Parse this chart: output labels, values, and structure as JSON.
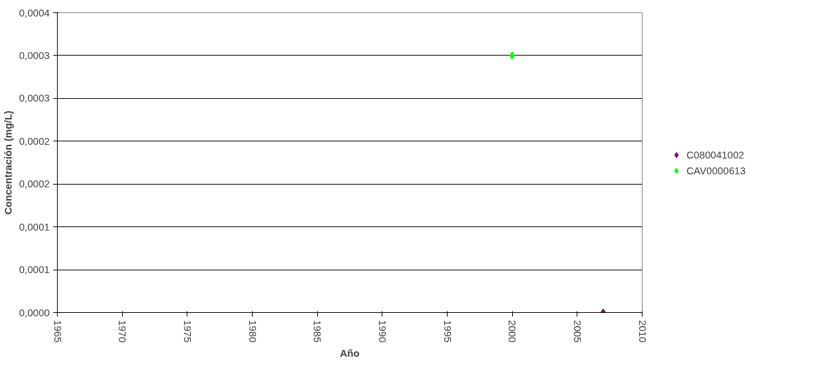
{
  "chart_data": {
    "type": "scatter",
    "xlabel": "Año",
    "ylabel": "Concentración (mg/L)",
    "marker": "diamond",
    "grid": "y",
    "legend": "right",
    "xlim": [
      1965,
      2010
    ],
    "xticks": [
      1965,
      1970,
      1975,
      1980,
      1985,
      1990,
      1995,
      2000,
      2005,
      2010
    ],
    "ylim": [
      0,
      0.00035
    ],
    "yticks": [
      {
        "value": 0,
        "label": "0,0000"
      },
      {
        "value": 5e-05,
        "label": "0,0001"
      },
      {
        "value": 0.0001,
        "label": "0,0001"
      },
      {
        "value": 0.00015,
        "label": "0,0002"
      },
      {
        "value": 0.0002,
        "label": "0,0002"
      },
      {
        "value": 0.00025,
        "label": "0,0003"
      },
      {
        "value": 0.0003,
        "label": "0,0003"
      },
      {
        "value": 0.00035,
        "label": "0,0004"
      }
    ],
    "series": [
      {
        "name": "C080041002",
        "color": "#800080",
        "x": [
          2007
        ],
        "values": [
          0
        ]
      },
      {
        "name": "CAV0000613",
        "color": "#00ff00",
        "x": [
          2000
        ],
        "values": [
          0.0003
        ]
      }
    ]
  }
}
